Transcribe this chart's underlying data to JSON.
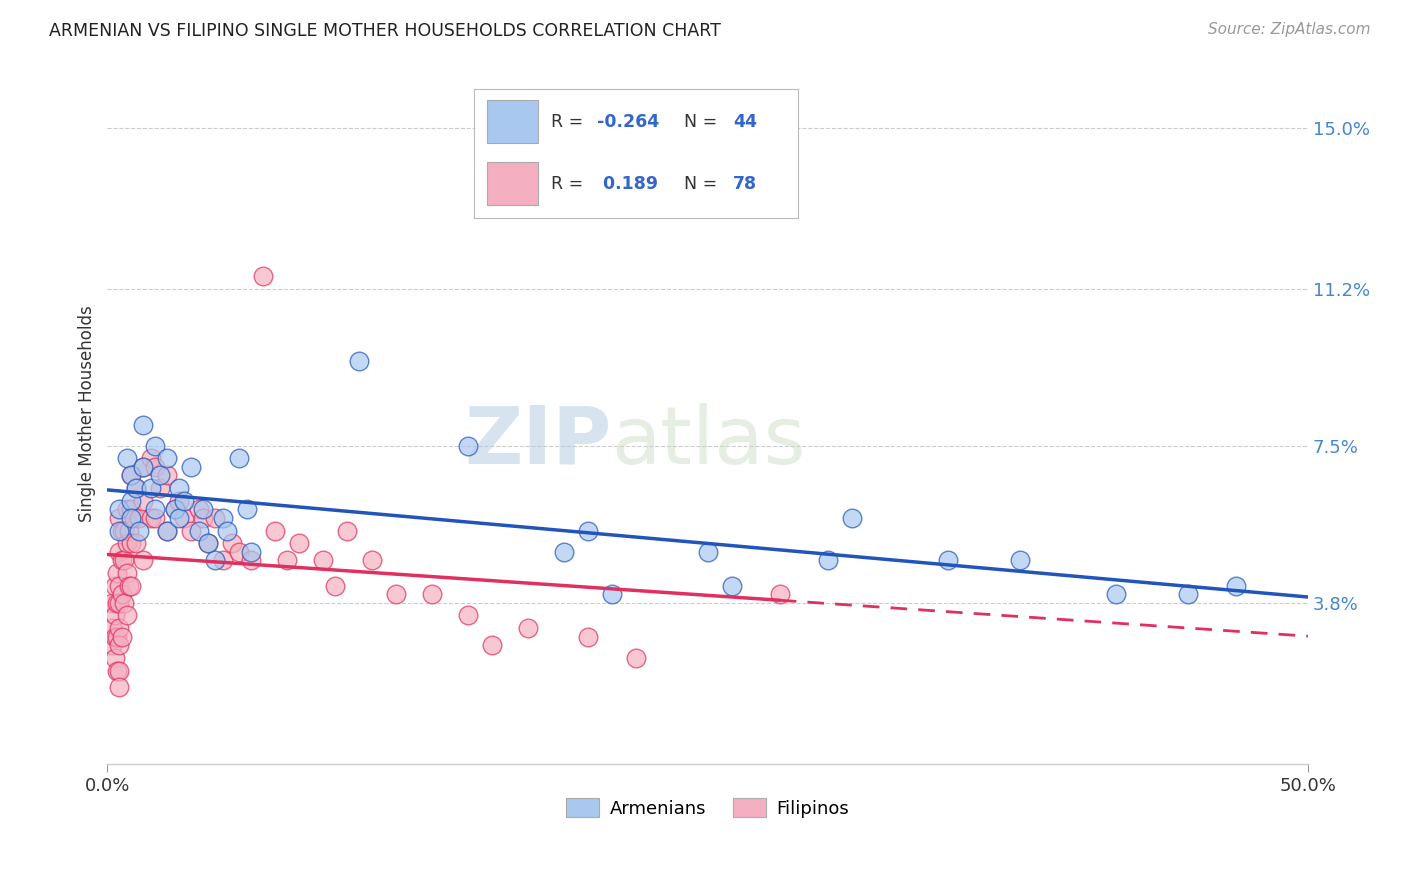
{
  "title": "ARMENIAN VS FILIPINO SINGLE MOTHER HOUSEHOLDS CORRELATION CHART",
  "source": "Source: ZipAtlas.com",
  "ylabel": "Single Mother Households",
  "ytick_labels": [
    "3.8%",
    "7.5%",
    "11.2%",
    "15.0%"
  ],
  "ytick_values": [
    0.038,
    0.075,
    0.112,
    0.15
  ],
  "xlim": [
    0.0,
    0.5
  ],
  "ylim": [
    0.0,
    0.165
  ],
  "R_armenian": -0.264,
  "N_armenian": 44,
  "R_filipino": 0.189,
  "N_filipino": 78,
  "color_armenian": "#a8c8f0",
  "color_filipino": "#f4b0c0",
  "line_color_armenian": "#2255bb",
  "line_color_filipino": "#e03060",
  "background_color": "#ffffff",
  "grid_color": "#cccccc",
  "title_color": "#222222",
  "source_color": "#999999",
  "watermark_zip": "ZIP",
  "watermark_atlas": "atlas",
  "armenian_x": [
    0.005,
    0.005,
    0.008,
    0.01,
    0.01,
    0.01,
    0.012,
    0.013,
    0.015,
    0.015,
    0.018,
    0.02,
    0.02,
    0.022,
    0.025,
    0.025,
    0.028,
    0.03,
    0.03,
    0.032,
    0.035,
    0.038,
    0.04,
    0.042,
    0.045,
    0.048,
    0.05,
    0.055,
    0.058,
    0.06,
    0.105,
    0.15,
    0.19,
    0.2,
    0.21,
    0.25,
    0.26,
    0.3,
    0.31,
    0.35,
    0.38,
    0.42,
    0.45,
    0.47
  ],
  "armenian_y": [
    0.06,
    0.055,
    0.072,
    0.068,
    0.062,
    0.058,
    0.065,
    0.055,
    0.08,
    0.07,
    0.065,
    0.075,
    0.06,
    0.068,
    0.072,
    0.055,
    0.06,
    0.065,
    0.058,
    0.062,
    0.07,
    0.055,
    0.06,
    0.052,
    0.048,
    0.058,
    0.055,
    0.072,
    0.06,
    0.05,
    0.095,
    0.075,
    0.05,
    0.055,
    0.04,
    0.05,
    0.042,
    0.048,
    0.058,
    0.048,
    0.048,
    0.04,
    0.04,
    0.042
  ],
  "filipino_x": [
    0.002,
    0.002,
    0.002,
    0.003,
    0.003,
    0.003,
    0.003,
    0.004,
    0.004,
    0.004,
    0.004,
    0.005,
    0.005,
    0.005,
    0.005,
    0.005,
    0.005,
    0.005,
    0.005,
    0.006,
    0.006,
    0.006,
    0.006,
    0.007,
    0.007,
    0.007,
    0.008,
    0.008,
    0.008,
    0.008,
    0.009,
    0.009,
    0.01,
    0.01,
    0.01,
    0.01,
    0.011,
    0.012,
    0.012,
    0.013,
    0.015,
    0.015,
    0.015,
    0.018,
    0.018,
    0.02,
    0.02,
    0.022,
    0.025,
    0.025,
    0.028,
    0.03,
    0.032,
    0.035,
    0.038,
    0.04,
    0.042,
    0.045,
    0.048,
    0.052,
    0.055,
    0.06,
    0.065,
    0.07,
    0.075,
    0.08,
    0.09,
    0.095,
    0.1,
    0.11,
    0.12,
    0.135,
    0.15,
    0.16,
    0.175,
    0.2,
    0.22,
    0.28
  ],
  "filipino_y": [
    0.038,
    0.032,
    0.028,
    0.042,
    0.035,
    0.03,
    0.025,
    0.045,
    0.038,
    0.03,
    0.022,
    0.058,
    0.05,
    0.042,
    0.038,
    0.032,
    0.028,
    0.022,
    0.018,
    0.055,
    0.048,
    0.04,
    0.03,
    0.055,
    0.048,
    0.038,
    0.06,
    0.052,
    0.045,
    0.035,
    0.055,
    0.042,
    0.068,
    0.06,
    0.052,
    0.042,
    0.058,
    0.065,
    0.052,
    0.058,
    0.07,
    0.062,
    0.048,
    0.072,
    0.058,
    0.07,
    0.058,
    0.065,
    0.068,
    0.055,
    0.06,
    0.062,
    0.058,
    0.055,
    0.06,
    0.058,
    0.052,
    0.058,
    0.048,
    0.052,
    0.05,
    0.048,
    0.115,
    0.055,
    0.048,
    0.052,
    0.048,
    0.042,
    0.055,
    0.048,
    0.04,
    0.04,
    0.035,
    0.028,
    0.032,
    0.03,
    0.025,
    0.04
  ]
}
